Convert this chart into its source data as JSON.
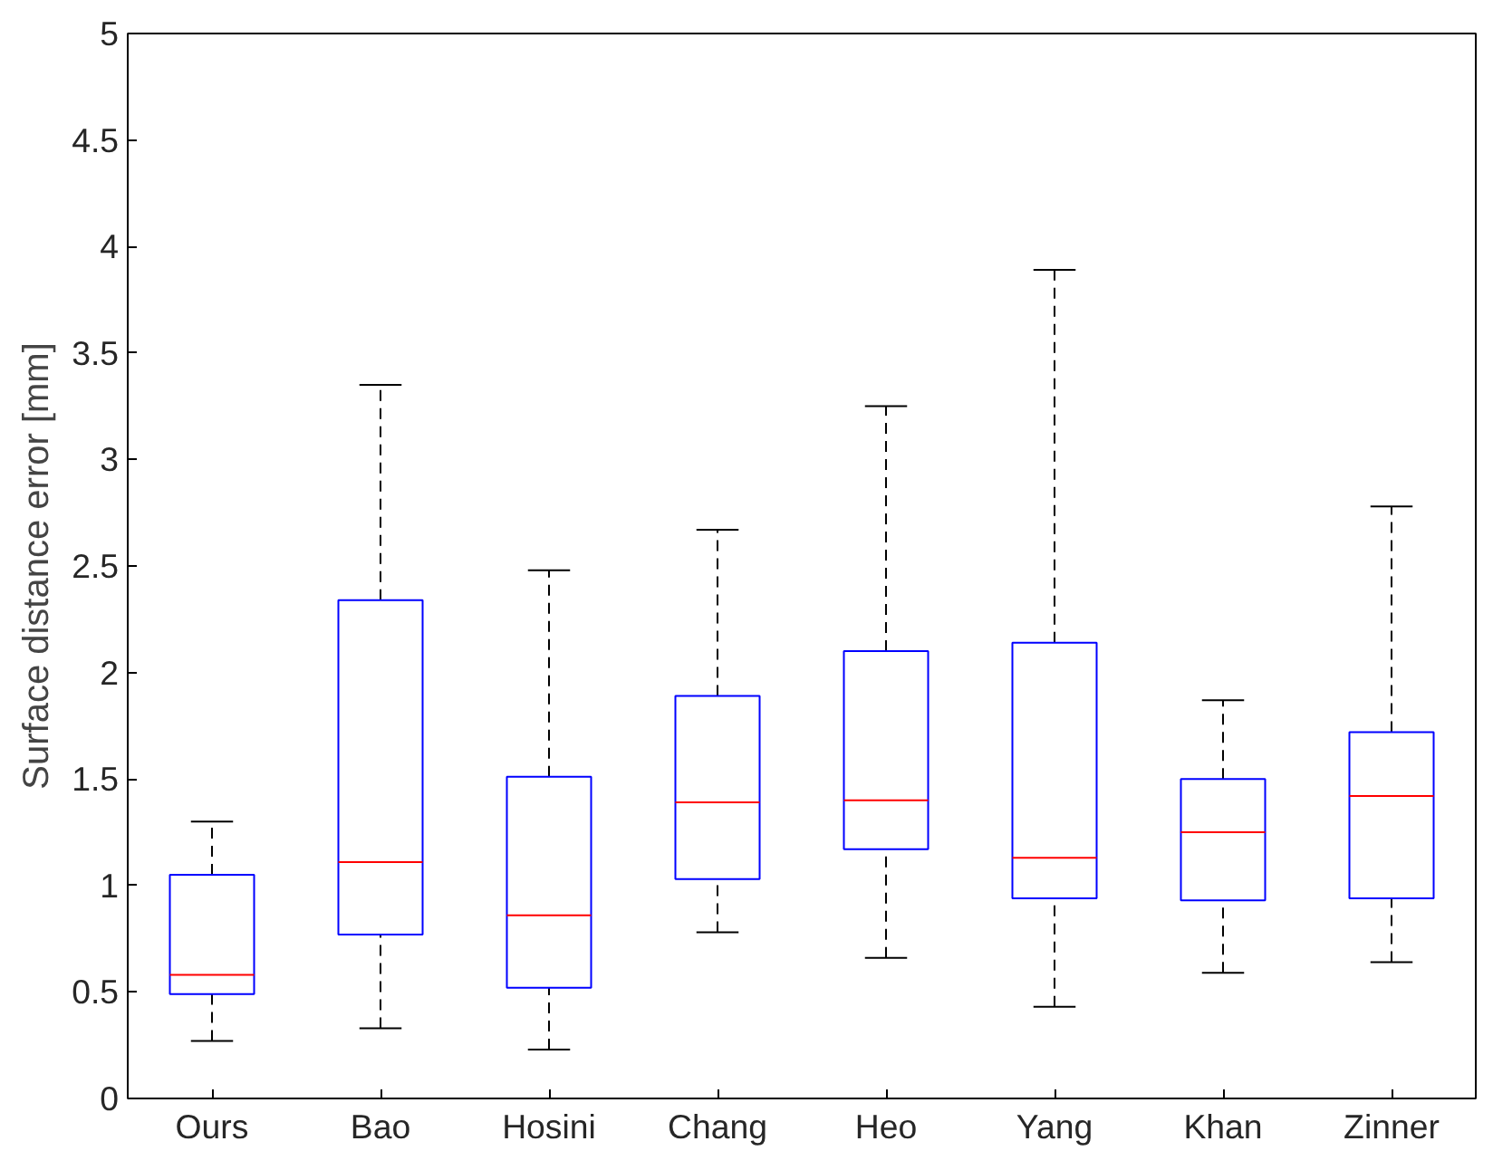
{
  "chart_data": {
    "type": "box",
    "ylabel": "Surface distance error [mm]",
    "categories": [
      "Ours",
      "Bao",
      "Hosini",
      "Chang",
      "Heo",
      "Yang",
      "Khan",
      "Zinner"
    ],
    "series": [
      {
        "color": "#0000ff",
        "line_style": "dashed",
        "boxes": [
          {
            "low": 0.27,
            "q1": 0.49,
            "median": 0.58,
            "q3": 1.05,
            "high": 1.3
          },
          {
            "low": 0.33,
            "q1": 0.77,
            "median": 1.11,
            "q3": 2.34,
            "high": 3.35
          },
          {
            "low": 0.23,
            "q1": 0.52,
            "median": 0.86,
            "q3": 1.51,
            "high": 2.48
          },
          {
            "low": 0.78,
            "q1": 1.03,
            "median": 1.39,
            "q3": 1.89,
            "high": 2.67
          },
          {
            "low": 0.66,
            "q1": 1.17,
            "median": 1.4,
            "q3": 2.1,
            "high": 3.25
          },
          {
            "low": 0.43,
            "q1": 0.94,
            "median": 1.13,
            "q3": 2.14,
            "high": 3.89
          },
          {
            "low": 0.59,
            "q1": 0.93,
            "median": 1.25,
            "q3": 1.5,
            "high": 1.87
          },
          {
            "low": 0.64,
            "q1": 0.94,
            "median": 1.42,
            "q3": 1.72,
            "high": 2.78
          }
        ]
      }
    ],
    "ylim": [
      0,
      5
    ],
    "yticks": [
      0,
      0.5,
      1,
      1.5,
      2,
      2.5,
      3,
      3.5,
      4,
      4.5,
      5
    ],
    "grid": false
  }
}
